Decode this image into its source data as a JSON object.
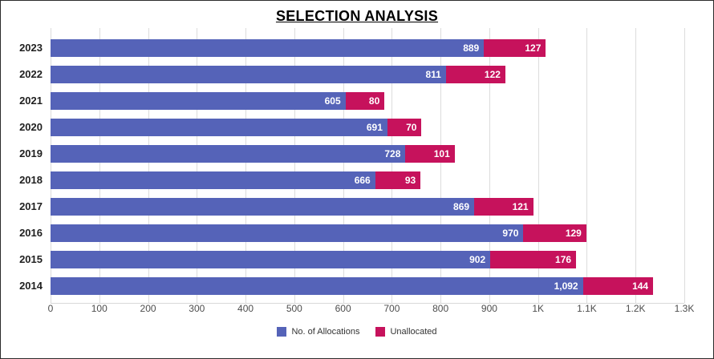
{
  "title": "SELECTION ANALYSIS",
  "chart_data": {
    "type": "bar",
    "orientation": "horizontal",
    "stacked": true,
    "title": "SELECTION ANALYSIS",
    "categories": [
      "2023",
      "2022",
      "2021",
      "2020",
      "2019",
      "2018",
      "2017",
      "2016",
      "2015",
      "2014"
    ],
    "series": [
      {
        "name": "No. of Allocations",
        "color": "#5563b8",
        "values": [
          889,
          811,
          605,
          691,
          728,
          666,
          869,
          970,
          902,
          1092
        ]
      },
      {
        "name": "Unallocated",
        "color": "#c6125c",
        "values": [
          127,
          122,
          80,
          70,
          101,
          93,
          121,
          129,
          176,
          144
        ]
      }
    ],
    "x_ticks": [
      "0",
      "100",
      "200",
      "300",
      "400",
      "500",
      "600",
      "700",
      "800",
      "900",
      "1K",
      "1.1K",
      "1.2K",
      "1.3K"
    ],
    "xlim": [
      0,
      1300
    ],
    "grid": true,
    "gridline_color": "#dcdcdc",
    "value_label_color": "#ffffff",
    "legend_position": "bottom"
  }
}
